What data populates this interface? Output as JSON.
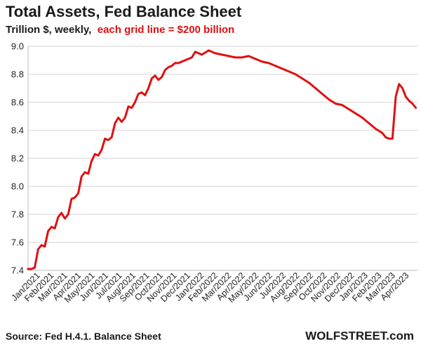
{
  "chart_data": {
    "type": "line",
    "title": "Total Assets, Fed Balance Sheet",
    "subtitle": {
      "plain": "Trillion $, weekly,",
      "highlight": "each grid line = $200 billion"
    },
    "ylim": [
      7.4,
      9.0
    ],
    "yticks": [
      "7.4",
      "7.6",
      "7.8",
      "8.0",
      "8.2",
      "8.4",
      "8.6",
      "8.8",
      "9.0"
    ],
    "ytick_values": [
      7.4,
      7.6,
      7.8,
      8.0,
      8.2,
      8.4,
      8.6,
      8.8,
      9.0
    ],
    "x_categories": [
      "Jan/2021",
      "Feb/2021",
      "Mar/2021",
      "Apr/2021",
      "May/2021",
      "Jun/2021",
      "Jul/2021",
      "Aug/2021",
      "Sep/2021",
      "Oct/2021",
      "Nov/2021",
      "Dec/2021",
      "Jan/2022",
      "Feb/2022",
      "Mar/2022",
      "Apr/2022",
      "May/2022",
      "Jun/2022",
      "Jul/2022",
      "Aug/2022",
      "Sep/2022",
      "Oct/2022",
      "Nov/2022",
      "Dec/2022",
      "Jan/2023",
      "Feb/2023",
      "Mar/2023",
      "Apr/2023"
    ],
    "grid": true,
    "series": [
      {
        "color": "#e01010",
        "x": [
          2021.0,
          2021.02,
          2021.04,
          2021.06,
          2021.08,
          2021.1,
          2021.12,
          2021.14,
          2021.16,
          2021.18,
          2021.2,
          2021.22,
          2021.24,
          2021.26,
          2021.28,
          2021.3,
          2021.32,
          2021.34,
          2021.36,
          2021.38,
          2021.4,
          2021.42,
          2021.44,
          2021.46,
          2021.48,
          2021.5,
          2021.52,
          2021.54,
          2021.56,
          2021.58,
          2021.6,
          2021.62,
          2021.64,
          2021.66,
          2021.68,
          2021.7,
          2021.72,
          2021.74,
          2021.76,
          2021.78,
          2021.8,
          2021.82,
          2021.84,
          2021.86,
          2021.88,
          2021.9,
          2021.92,
          2021.94,
          2021.96,
          2021.98,
          2022.0,
          2022.04,
          2022.08,
          2022.12,
          2022.16,
          2022.2,
          2022.24,
          2022.28,
          2022.32,
          2022.36,
          2022.4,
          2022.44,
          2022.48,
          2022.52,
          2022.56,
          2022.6,
          2022.64,
          2022.68,
          2022.72,
          2022.76,
          2022.8,
          2022.84,
          2022.88,
          2022.92,
          2022.96,
          2023.0,
          2023.04,
          2023.08,
          2023.12,
          2023.14,
          2023.16,
          2023.18,
          2023.2,
          2023.22,
          2023.24,
          2023.26,
          2023.28,
          2023.3,
          2023.32
        ],
        "values": [
          7.41,
          7.41,
          7.42,
          7.55,
          7.58,
          7.57,
          7.68,
          7.71,
          7.7,
          7.78,
          7.81,
          7.77,
          7.8,
          7.91,
          7.92,
          7.95,
          8.07,
          8.1,
          8.09,
          8.18,
          8.23,
          8.22,
          8.26,
          8.34,
          8.33,
          8.35,
          8.45,
          8.49,
          8.46,
          8.49,
          8.57,
          8.56,
          8.6,
          8.66,
          8.67,
          8.65,
          8.7,
          8.77,
          8.79,
          8.76,
          8.78,
          8.83,
          8.85,
          8.86,
          8.88,
          8.88,
          8.89,
          8.9,
          8.91,
          8.92,
          8.96,
          8.94,
          8.97,
          8.95,
          8.94,
          8.93,
          8.92,
          8.92,
          8.93,
          8.91,
          8.89,
          8.88,
          8.86,
          8.84,
          8.82,
          8.8,
          8.77,
          8.74,
          8.7,
          8.66,
          8.62,
          8.59,
          8.58,
          8.55,
          8.52,
          8.49,
          8.45,
          8.41,
          8.38,
          8.35,
          8.34,
          8.34,
          8.64,
          8.73,
          8.7,
          8.64,
          8.61,
          8.59,
          8.56
        ]
      }
    ]
  },
  "footer": {
    "source": "Source: Fed H.4.1. Balance Sheet",
    "brand": "WOLFSTREET.com"
  }
}
